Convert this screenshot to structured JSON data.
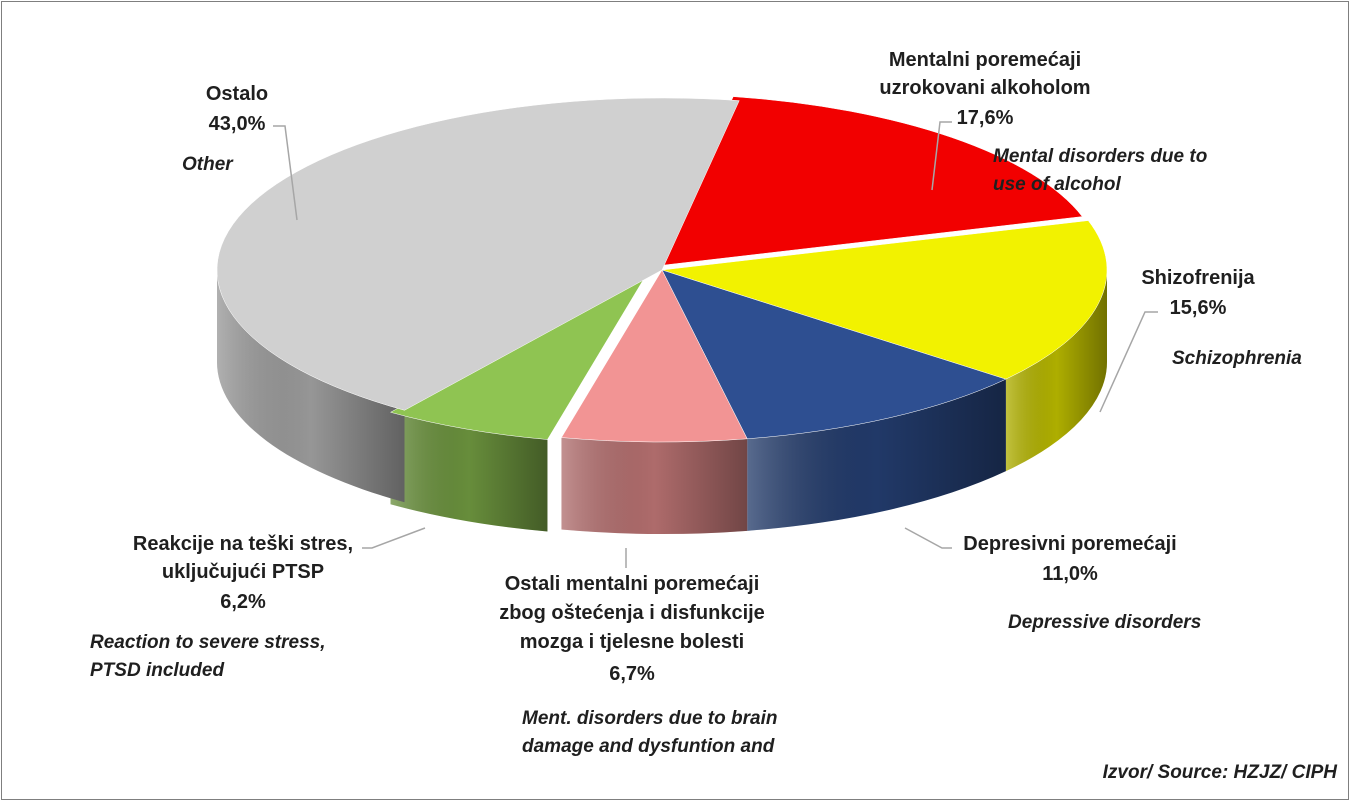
{
  "chart_data": {
    "type": "pie",
    "style": "3d-exploded-pie",
    "title": "",
    "slices": [
      {
        "label": "Mentalni poremećaji uzrokovani alkoholom",
        "value_label": "17,6%",
        "value": 17.6,
        "english": "Mental disorders due to use of alcohol",
        "color": "#f20000"
      },
      {
        "label": "Shizofrenija",
        "value_label": "15,6%",
        "value": 15.6,
        "english": "Schizophrenia",
        "color": "#f2f200"
      },
      {
        "label": "Depresivni poremećaji",
        "value_label": "11,0%",
        "value": 11.0,
        "english": "Depressive disorders",
        "color": "#2e4f91"
      },
      {
        "label": "Ostali mentalni poremećaji zbog oštećenja i disfunkcije mozga i tjelesne bolesti",
        "value_label": "6,7%",
        "value": 6.7,
        "english": "Ment. disorders due to brain damage and dysfuntion and",
        "color": "#f29494"
      },
      {
        "label": "Reakcije na teški stres, uključujući PTSP",
        "value_label": "6,2%",
        "value": 6.2,
        "english": "Reaction to severe stress, PTSD included",
        "color": "#8fc452"
      },
      {
        "label": "Ostalo",
        "value_label": "43,0%",
        "value": 43.0,
        "english": "Other",
        "color": "#d0d0d0"
      }
    ],
    "source": "Izvor/ Source: HZJZ/ CIPH"
  },
  "labels": {
    "alcohol": {
      "line1": "Mentalni poremećaji",
      "line2": "uzrokovani alkoholom",
      "pct": "17,6%",
      "en1": "Mental disorders due to",
      "en2": "use of alcohol"
    },
    "schizo": {
      "line1": "Shizofrenija",
      "pct": "15,6%",
      "en1": "Schizophrenia"
    },
    "depress": {
      "line1": "Depresivni poremećaji",
      "pct": "11,0%",
      "en1": "Depressive disorders"
    },
    "brain": {
      "line1": "Ostali mentalni poremećaji",
      "line2": "zbog oštećenja i disfunkcije",
      "line3": "mozga i tjelesne bolesti",
      "pct": "6,7%",
      "en1": "Ment. disorders due to brain",
      "en2": "damage and dysfuntion and"
    },
    "stress": {
      "line1": "Reakcije na teški stres,",
      "line2": "uključujući  PTSP",
      "pct": "6,2%",
      "en1": "Reaction to severe stress,",
      "en2": "PTSD included"
    },
    "other": {
      "line1": "Ostalo",
      "pct": "43,0%",
      "en1": "Other"
    }
  }
}
